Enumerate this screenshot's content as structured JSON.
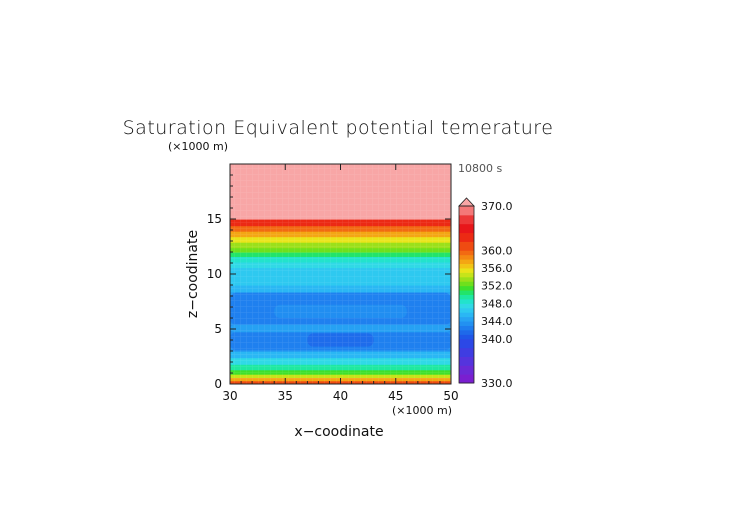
{
  "chart_data": {
    "type": "heatmap",
    "title": "Saturation Equivalent potential temerature",
    "xlabel": "x−coodinate",
    "ylabel": "z−coodinate",
    "x_unit": "(×1000 m)",
    "y_unit": "(×1000 m)",
    "time_label": "10800 s",
    "xlim": [
      30,
      50
    ],
    "ylim": [
      0,
      20
    ],
    "x_ticks": [
      30,
      35,
      40,
      45,
      50
    ],
    "y_ticks": [
      0,
      5,
      10,
      15
    ],
    "x_tick_labels": [
      "30",
      "35",
      "40",
      "45",
      "50"
    ],
    "y_tick_labels": [
      "0",
      "5",
      "10",
      "15"
    ],
    "colorbar": {
      "min": 330,
      "max": 370,
      "extend": "max",
      "tick_values": [
        330,
        340,
        344,
        348,
        352,
        356,
        360,
        370
      ],
      "tick_labels": [
        "330.0",
        "340.0",
        "344.0",
        "348.0",
        "352.0",
        "356.0",
        "360.0",
        "370.0"
      ],
      "levels": [
        330,
        332,
        334,
        336,
        338,
        340,
        341,
        342,
        343,
        344,
        345,
        346,
        347,
        348,
        349,
        350,
        351,
        352,
        353,
        354,
        355,
        356,
        357,
        358,
        359,
        360,
        362,
        364,
        366,
        368,
        370
      ],
      "colors": [
        "#7a1fd0",
        "#6a2ad6",
        "#5534dd",
        "#3f3de2",
        "#2c48e6",
        "#1f56e8",
        "#1e69ea",
        "#1e7dee",
        "#2291f1",
        "#27a3f3",
        "#2ab7f4",
        "#2ec9f0",
        "#30d9e6",
        "#22e3cc",
        "#1ee8a0",
        "#22e46a",
        "#3fe02c",
        "#6fe01c",
        "#9be01a",
        "#c6e41a",
        "#e9e41a",
        "#f2c416",
        "#f4a613",
        "#f48812",
        "#f26a12",
        "#ef4b12",
        "#ec2a14",
        "#e8161a",
        "#ec3838",
        "#f47878",
        "#f8a6a6"
      ]
    },
    "bands": [
      {
        "z_from": 0.0,
        "z_to": 0.3,
        "value": 361
      },
      {
        "z_from": 0.3,
        "z_to": 0.6,
        "value": 357
      },
      {
        "z_from": 0.6,
        "z_to": 0.9,
        "value": 354
      },
      {
        "z_from": 0.9,
        "z_to": 1.3,
        "value": 351
      },
      {
        "z_from": 1.3,
        "z_to": 1.8,
        "value": 349
      },
      {
        "z_from": 1.8,
        "z_to": 2.4,
        "value": 347
      },
      {
        "z_from": 2.4,
        "z_to": 3.0,
        "value": 345
      },
      {
        "z_from": 3.0,
        "z_to": 7.8,
        "value": 343
      },
      {
        "z_from": 7.8,
        "z_to": 8.4,
        "value": 344
      },
      {
        "z_from": 8.4,
        "z_to": 9.0,
        "value": 345
      },
      {
        "z_from": 9.0,
        "z_to": 10.6,
        "value": 346
      },
      {
        "z_from": 10.6,
        "z_to": 11.1,
        "value": 347
      },
      {
        "z_from": 11.1,
        "z_to": 11.6,
        "value": 348
      },
      {
        "z_from": 11.6,
        "z_to": 12.0,
        "value": 350
      },
      {
        "z_from": 12.0,
        "z_to": 12.4,
        "value": 352
      },
      {
        "z_from": 12.4,
        "z_to": 12.9,
        "value": 353
      },
      {
        "z_from": 12.9,
        "z_to": 13.4,
        "value": 355
      },
      {
        "z_from": 13.4,
        "z_to": 13.9,
        "value": 357
      },
      {
        "z_from": 13.9,
        "z_to": 14.4,
        "value": 359
      },
      {
        "z_from": 14.4,
        "z_to": 15.0,
        "value": 362
      },
      {
        "z_from": 15.0,
        "z_to": 20.0,
        "value": 370
      }
    ],
    "features": [
      {
        "kind": "region",
        "value": 342,
        "x_from": 30.0,
        "x_to": 50.0,
        "z_from": 5.4,
        "z_to": 8.3
      },
      {
        "kind": "region",
        "value": 342,
        "x_from": 30.0,
        "x_to": 50.0,
        "z_from": 3.1,
        "z_to": 4.7
      },
      {
        "kind": "region",
        "value": 343,
        "x_from": 34.0,
        "x_to": 46.0,
        "z_from": 6.0,
        "z_to": 7.2
      },
      {
        "kind": "region",
        "value": 341,
        "x_from": 37.0,
        "x_to": 43.0,
        "z_from": 3.4,
        "z_to": 4.6
      },
      {
        "kind": "region",
        "value": 344,
        "x_from": 30.0,
        "x_to": 50.0,
        "z_from": 4.7,
        "z_to": 5.4
      }
    ]
  }
}
